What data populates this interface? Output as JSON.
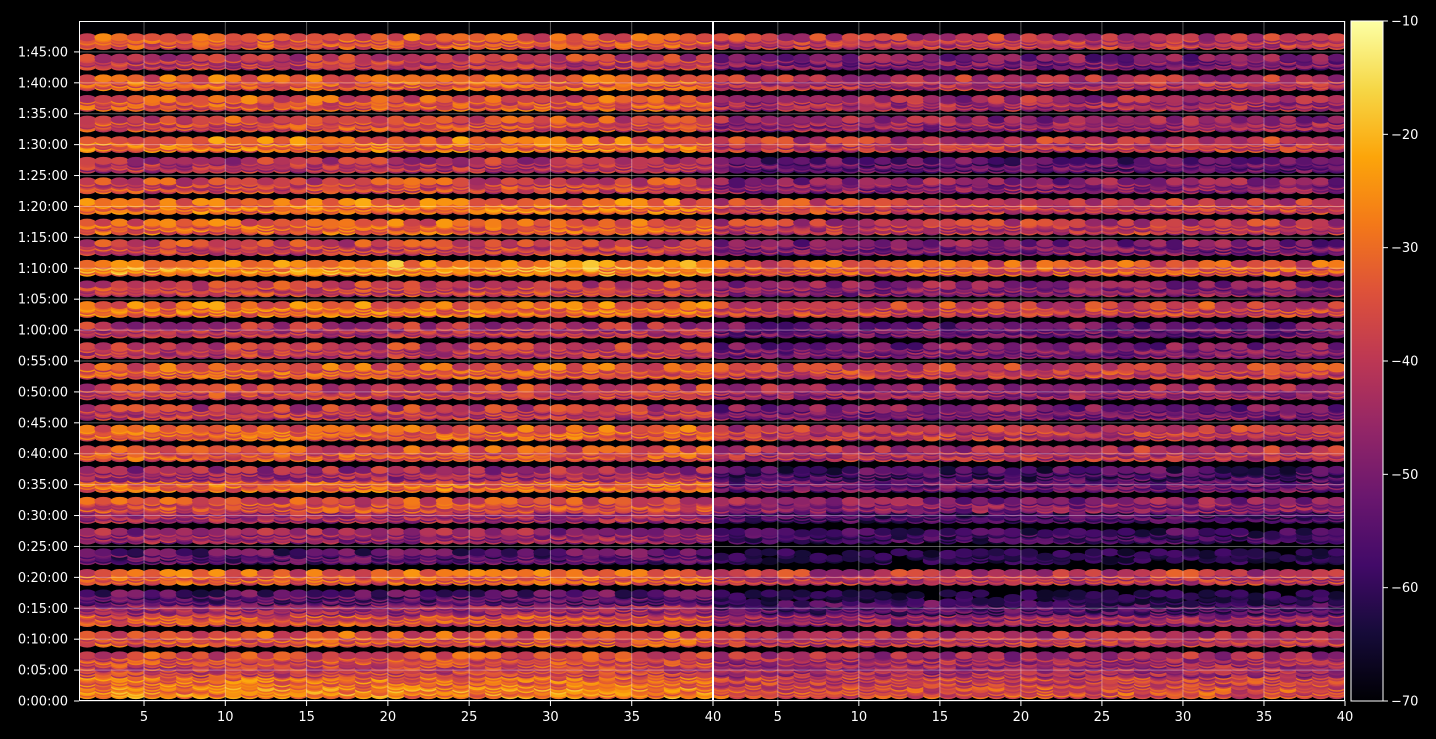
{
  "chart_data": {
    "type": "heatmap",
    "title": "",
    "panels": [
      {
        "name": "",
        "xlim": [
          1,
          40
        ],
        "ylim": [
          0,
          6600
        ],
        "x_ticks": [
          5,
          10,
          15,
          20,
          25,
          30,
          35,
          40
        ],
        "y_ticks": [
          0,
          300,
          600,
          900,
          1200,
          1500,
          1800,
          2100,
          2400,
          2700,
          3000,
          3300,
          3600,
          3900,
          4200,
          4500,
          4800,
          5100,
          5400,
          5700,
          6000,
          6300
        ],
        "y_tick_labels": [
          "0:00:00",
          "0:05:00",
          "0:10:00",
          "0:15:00",
          "0:20:00",
          "0:25:00",
          "0:30:00",
          "0:35:00",
          "0:40:00",
          "0:45:00",
          "0:50:00",
          "0:55:00",
          "1:00:00",
          "1:05:00",
          "1:10:00",
          "1:15:00",
          "1:20:00",
          "1:25:00",
          "1:30:00",
          "1:35:00",
          "1:40:00",
          "1:45:00"
        ],
        "grid": true
      },
      {
        "name": "",
        "xlim": [
          1,
          40
        ],
        "ylim": [
          0,
          6600
        ],
        "x_ticks": [
          5,
          10,
          15,
          20,
          25,
          30,
          35,
          40
        ],
        "grid": true
      }
    ],
    "colorbar": {
      "colormap": "inferno",
      "range": [
        -70,
        -10
      ],
      "ticks": [
        -10,
        -20,
        -30,
        -40,
        -50,
        -60,
        -70
      ],
      "tick_labels": [
        "−10",
        "−20",
        "−30",
        "−40",
        "−50",
        "−60",
        "−70"
      ]
    },
    "rows": [
      {
        "t": 100,
        "left": -27,
        "right": -35
      },
      {
        "t": 200,
        "left": -30,
        "right": -38
      },
      {
        "t": 300,
        "left": -38,
        "right": -44
      },
      {
        "t": 400,
        "left": -36,
        "right": -44
      },
      {
        "t": 600,
        "left": -34,
        "right": -40
      },
      {
        "t": 800,
        "left": -35,
        "right": -45
      },
      {
        "t": 900,
        "left": -45,
        "right": -56
      },
      {
        "t": 1000,
        "left": -55,
        "right": -66
      },
      {
        "t": 1200,
        "left": -33,
        "right": -40
      },
      {
        "t": 1400,
        "left": -55,
        "right": -66
      },
      {
        "t": 1600,
        "left": -46,
        "right": -60
      },
      {
        "t": 1800,
        "left": -44,
        "right": -58
      },
      {
        "t": 1900,
        "left": -36,
        "right": -48
      },
      {
        "t": 2100,
        "left": -31,
        "right": -52
      },
      {
        "t": 2200,
        "left": -44,
        "right": -58
      },
      {
        "t": 2400,
        "left": -34,
        "right": -42
      },
      {
        "t": 2600,
        "left": -32,
        "right": -40
      },
      {
        "t": 2800,
        "left": -40,
        "right": -50
      },
      {
        "t": 3000,
        "left": -38,
        "right": -46
      },
      {
        "t": 3200,
        "left": -33,
        "right": -38
      },
      {
        "t": 3400,
        "left": -40,
        "right": -50
      },
      {
        "t": 3600,
        "left": -42,
        "right": -52
      },
      {
        "t": 3800,
        "left": -30,
        "right": -38
      },
      {
        "t": 4000,
        "left": -38,
        "right": -48
      },
      {
        "t": 4200,
        "left": -25,
        "right": -34
      },
      {
        "t": 4400,
        "left": -38,
        "right": -50
      },
      {
        "t": 4600,
        "left": -32,
        "right": -40
      },
      {
        "t": 4800,
        "left": -30,
        "right": -38
      },
      {
        "t": 5000,
        "left": -37,
        "right": -48
      },
      {
        "t": 5200,
        "left": -42,
        "right": -54
      },
      {
        "t": 5400,
        "left": -30,
        "right": -40
      },
      {
        "t": 5600,
        "left": -36,
        "right": -46
      },
      {
        "t": 5800,
        "left": -34,
        "right": -44
      },
      {
        "t": 6000,
        "left": -32,
        "right": -42
      },
      {
        "t": 6200,
        "left": -40,
        "right": -50
      },
      {
        "t": 6400,
        "left": -34,
        "right": -40
      }
    ]
  }
}
